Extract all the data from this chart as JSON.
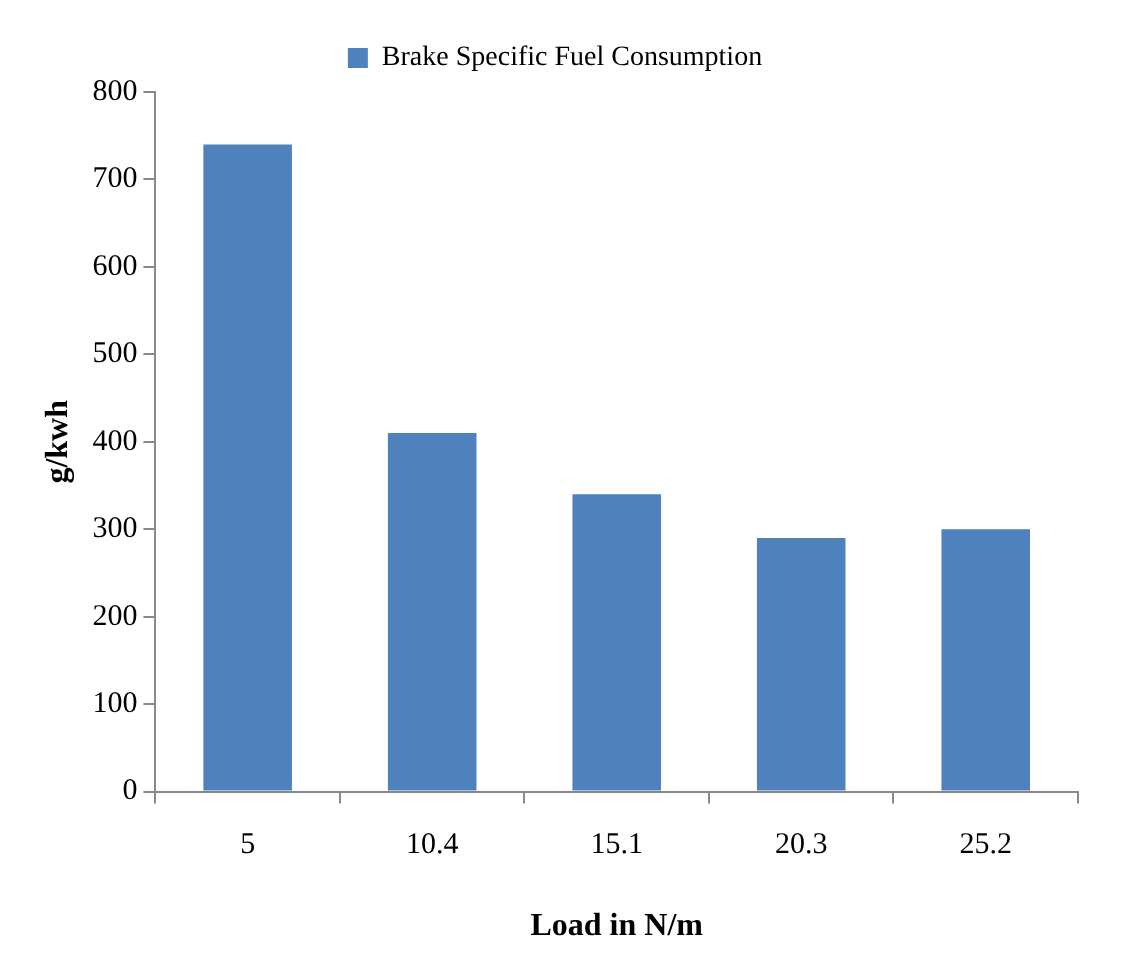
{
  "chart_data": {
    "type": "bar",
    "xlabel": "Load in N/m",
    "ylabel": "g/kwh",
    "categories": [
      "5",
      "10.4",
      "15.1",
      "20.3",
      "25.2"
    ],
    "series": [
      {
        "name": "Brake Specific Fuel Consumption",
        "color": "#4f81bd",
        "values": [
          740,
          410,
          340,
          290,
          300
        ]
      }
    ],
    "ylim": [
      0,
      800
    ],
    "yticks": [
      0,
      100,
      200,
      300,
      400,
      500,
      600,
      700,
      800
    ],
    "grid": false,
    "legend": "top"
  }
}
